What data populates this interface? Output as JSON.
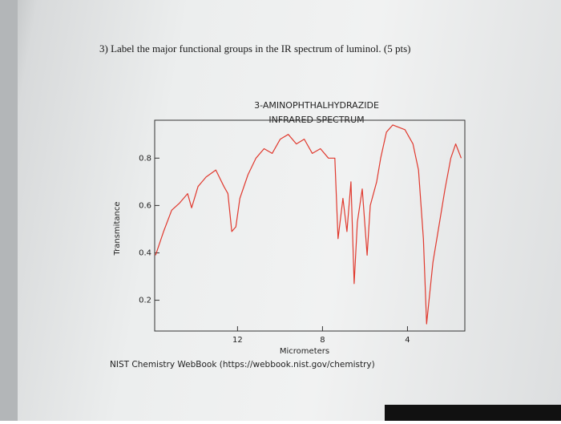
{
  "question": "3) Label the major functional groups in the IR spectrum of luminol. (5 pts)",
  "source": "NIST Chemistry WebBook (https://webbook.nist.gov/chemistry)",
  "chart_data": {
    "type": "line",
    "title": "3-AMINOPHTHALHYDRAZIDE",
    "subtitle": "INFRARED SPECTRUM",
    "xlabel": "Micrometers",
    "ylabel": "Transmitance",
    "color": "#e0392e",
    "xlim": [
      15.9,
      1.3
    ],
    "xticks": [
      12,
      8,
      4
    ],
    "ylim": [
      0.07,
      0.96
    ],
    "yticks": [
      0.2,
      0.4,
      0.6,
      0.8
    ],
    "x": [
      15.86,
      15.48,
      15.1,
      14.73,
      14.35,
      14.16,
      13.86,
      13.48,
      13.02,
      12.64,
      12.45,
      12.27,
      12.08,
      11.89,
      11.51,
      11.13,
      10.75,
      10.37,
      9.99,
      9.61,
      9.23,
      8.86,
      8.48,
      8.1,
      7.72,
      7.42,
      7.27,
      7.04,
      6.85,
      6.66,
      6.51,
      6.36,
      6.13,
      5.9,
      5.75,
      5.45,
      5.26,
      4.99,
      4.69,
      4.12,
      3.74,
      3.48,
      3.25,
      3.1,
      2.8,
      2.49,
      2.23,
      1.96,
      1.73,
      1.47
    ],
    "values": [
      0.39,
      0.49,
      0.58,
      0.61,
      0.65,
      0.59,
      0.68,
      0.72,
      0.75,
      0.68,
      0.65,
      0.49,
      0.51,
      0.63,
      0.73,
      0.8,
      0.84,
      0.82,
      0.88,
      0.9,
      0.86,
      0.88,
      0.82,
      0.84,
      0.8,
      0.8,
      0.46,
      0.63,
      0.49,
      0.7,
      0.27,
      0.53,
      0.67,
      0.39,
      0.6,
      0.7,
      0.8,
      0.91,
      0.94,
      0.92,
      0.86,
      0.75,
      0.46,
      0.1,
      0.36,
      0.53,
      0.67,
      0.8,
      0.86,
      0.8
    ]
  }
}
